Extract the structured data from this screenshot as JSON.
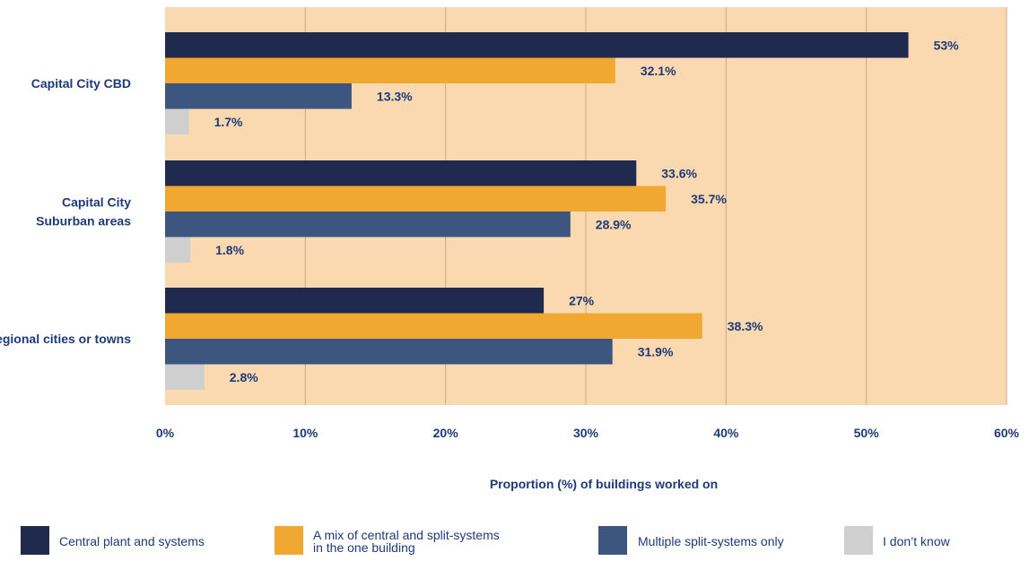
{
  "chart_data": {
    "type": "bar",
    "orientation": "horizontal",
    "categories": [
      [
        "Capital City CBD"
      ],
      [
        "Capital City",
        "Suburban areas"
      ],
      [
        "Regional cities or towns"
      ]
    ],
    "series": [
      {
        "name": "Central plant and systems",
        "color": "#1f2a4e",
        "values": [
          53,
          33.6,
          27
        ],
        "labels": [
          "53%",
          "33.6%",
          "27%"
        ]
      },
      {
        "name": "A mix of central and split-systems in the one building",
        "name_lines": [
          "A mix of central and split-systems",
          "in the one building"
        ],
        "color": "#f0a830",
        "values": [
          32.1,
          35.7,
          38.3
        ],
        "labels": [
          "32.1%",
          "35.7%",
          "38.3%"
        ]
      },
      {
        "name": "Multiple split-systems only",
        "color": "#3c5680",
        "values": [
          13.3,
          28.9,
          31.9
        ],
        "labels": [
          "13.3%",
          "28.9%",
          "31.9%"
        ]
      },
      {
        "name": "I don’t know",
        "color": "#cfcfcf",
        "values": [
          1.7,
          1.8,
          2.8
        ],
        "labels": [
          "1.7%",
          "1.8%",
          "2.8%"
        ]
      }
    ],
    "xlim": [
      0,
      60
    ],
    "xticks": [
      0,
      10,
      20,
      30,
      40,
      50,
      60
    ],
    "xtick_labels": [
      "0%",
      "10%",
      "20%",
      "30%",
      "40%",
      "50%",
      "60%"
    ],
    "xlabel": "Proportion (%) of buildings worked on",
    "grid": true,
    "legend_position": "bottom",
    "plot_background": "#fad9b0"
  }
}
